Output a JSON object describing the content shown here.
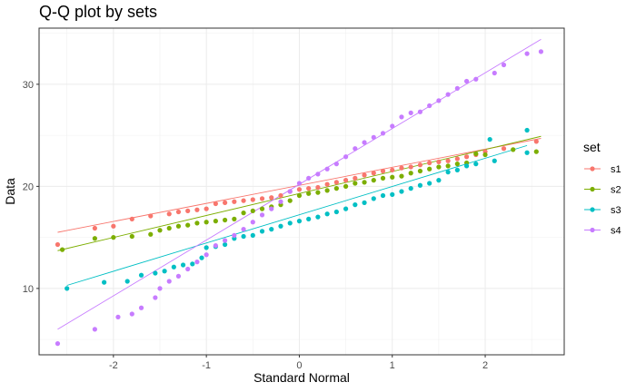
{
  "chart_data": {
    "type": "scatter",
    "title": "Q-Q plot by sets",
    "xlabel": "Standard Normal",
    "ylabel": "Data",
    "xlim": [
      -2.8,
      2.85
    ],
    "ylim": [
      3.5,
      35.5
    ],
    "xticks": [
      -2,
      -1,
      0,
      1,
      2
    ],
    "yticks": [
      10,
      20,
      30
    ],
    "grid": true,
    "legend": {
      "title": "set",
      "position": "right"
    },
    "series": [
      {
        "name": "s1",
        "color": "#F8766D",
        "line": {
          "x": [
            -2.6,
            2.6
          ],
          "y": [
            15.5,
            24.7
          ]
        },
        "points": [
          [
            -2.6,
            14.3
          ],
          [
            -2.2,
            15.9
          ],
          [
            -2.0,
            16.1
          ],
          [
            -1.8,
            16.8
          ],
          [
            -1.6,
            17.1
          ],
          [
            -1.4,
            17.3
          ],
          [
            -1.3,
            17.5
          ],
          [
            -1.2,
            17.6
          ],
          [
            -1.1,
            17.7
          ],
          [
            -1.0,
            17.8
          ],
          [
            -0.9,
            18.3
          ],
          [
            -0.8,
            18.4
          ],
          [
            -0.7,
            18.5
          ],
          [
            -0.6,
            18.6
          ],
          [
            -0.5,
            18.7
          ],
          [
            -0.4,
            18.8
          ],
          [
            -0.3,
            18.9
          ],
          [
            -0.2,
            19.1
          ],
          [
            -0.1,
            19.5
          ],
          [
            0.0,
            19.7
          ],
          [
            0.1,
            19.8
          ],
          [
            0.2,
            19.9
          ],
          [
            0.3,
            20.2
          ],
          [
            0.4,
            20.4
          ],
          [
            0.5,
            20.6
          ],
          [
            0.6,
            20.8
          ],
          [
            0.7,
            21.1
          ],
          [
            0.8,
            21.3
          ],
          [
            0.9,
            21.5
          ],
          [
            1.0,
            21.6
          ],
          [
            1.1,
            21.8
          ],
          [
            1.2,
            21.9
          ],
          [
            1.3,
            22.1
          ],
          [
            1.4,
            22.3
          ],
          [
            1.5,
            22.4
          ],
          [
            1.6,
            22.5
          ],
          [
            1.7,
            22.7
          ],
          [
            1.8,
            22.9
          ],
          [
            1.9,
            23.1
          ],
          [
            2.0,
            23.4
          ],
          [
            2.2,
            23.7
          ],
          [
            2.55,
            24.4
          ]
        ]
      },
      {
        "name": "s2",
        "color": "#7CAE00",
        "line": {
          "x": [
            -2.6,
            2.6
          ],
          "y": [
            13.7,
            24.9
          ]
        },
        "points": [
          [
            -2.55,
            13.8
          ],
          [
            -2.2,
            14.9
          ],
          [
            -2.0,
            15.0
          ],
          [
            -1.8,
            15.1
          ],
          [
            -1.6,
            15.3
          ],
          [
            -1.5,
            15.7
          ],
          [
            -1.4,
            15.9
          ],
          [
            -1.3,
            16.1
          ],
          [
            -1.2,
            16.2
          ],
          [
            -1.1,
            16.4
          ],
          [
            -1.0,
            16.5
          ],
          [
            -0.9,
            16.6
          ],
          [
            -0.8,
            16.7
          ],
          [
            -0.7,
            16.8
          ],
          [
            -0.6,
            17.4
          ],
          [
            -0.5,
            17.6
          ],
          [
            -0.4,
            17.8
          ],
          [
            -0.3,
            18.0
          ],
          [
            -0.2,
            18.2
          ],
          [
            -0.1,
            18.6
          ],
          [
            0.0,
            19.1
          ],
          [
            0.1,
            19.3
          ],
          [
            0.2,
            19.4
          ],
          [
            0.3,
            19.6
          ],
          [
            0.4,
            19.8
          ],
          [
            0.5,
            20.0
          ],
          [
            0.6,
            20.3
          ],
          [
            0.7,
            20.4
          ],
          [
            0.8,
            20.6
          ],
          [
            0.9,
            20.8
          ],
          [
            1.0,
            20.9
          ],
          [
            1.1,
            21.0
          ],
          [
            1.2,
            21.3
          ],
          [
            1.3,
            21.5
          ],
          [
            1.4,
            21.7
          ],
          [
            1.5,
            21.9
          ],
          [
            1.6,
            22.0
          ],
          [
            1.7,
            22.2
          ],
          [
            1.8,
            22.3
          ],
          [
            1.9,
            23.2
          ],
          [
            2.0,
            23.1
          ],
          [
            2.3,
            23.6
          ],
          [
            2.55,
            23.4
          ]
        ]
      },
      {
        "name": "s3",
        "color": "#00BFC4",
        "line": {
          "x": [
            -2.5,
            2.45
          ],
          "y": [
            10.3,
            24.0
          ]
        },
        "points": [
          [
            -2.5,
            10.0
          ],
          [
            -2.1,
            10.6
          ],
          [
            -1.85,
            10.7
          ],
          [
            -1.7,
            11.3
          ],
          [
            -1.55,
            11.5
          ],
          [
            -1.45,
            11.7
          ],
          [
            -1.35,
            12.1
          ],
          [
            -1.25,
            12.3
          ],
          [
            -1.15,
            12.4
          ],
          [
            -1.05,
            13.0
          ],
          [
            -1.0,
            14.0
          ],
          [
            -0.9,
            14.1
          ],
          [
            -0.8,
            14.3
          ],
          [
            -0.7,
            14.9
          ],
          [
            -0.6,
            15.1
          ],
          [
            -0.5,
            15.2
          ],
          [
            -0.4,
            15.6
          ],
          [
            -0.3,
            15.8
          ],
          [
            -0.2,
            16.1
          ],
          [
            -0.1,
            16.4
          ],
          [
            0.0,
            16.6
          ],
          [
            0.1,
            16.8
          ],
          [
            0.2,
            17.0
          ],
          [
            0.3,
            17.3
          ],
          [
            0.4,
            17.5
          ],
          [
            0.5,
            17.8
          ],
          [
            0.6,
            18.2
          ],
          [
            0.7,
            18.4
          ],
          [
            0.8,
            18.8
          ],
          [
            0.9,
            19.1
          ],
          [
            1.0,
            19.2
          ],
          [
            1.1,
            19.5
          ],
          [
            1.2,
            19.8
          ],
          [
            1.3,
            20.1
          ],
          [
            1.4,
            20.3
          ],
          [
            1.5,
            20.6
          ],
          [
            1.6,
            21.4
          ],
          [
            1.7,
            21.6
          ],
          [
            1.8,
            22.0
          ],
          [
            1.9,
            22.2
          ],
          [
            2.1,
            22.5
          ],
          [
            2.45,
            23.3
          ],
          [
            2.05,
            24.6
          ],
          [
            2.45,
            25.5
          ]
        ]
      },
      {
        "name": "s4",
        "color": "#C77CFF",
        "line": {
          "x": [
            -2.6,
            2.6
          ],
          "y": [
            6.0,
            34.4
          ]
        },
        "points": [
          [
            -2.6,
            4.6
          ],
          [
            -2.2,
            6.0
          ],
          [
            -1.95,
            7.2
          ],
          [
            -1.8,
            7.5
          ],
          [
            -1.7,
            8.1
          ],
          [
            -1.55,
            9.1
          ],
          [
            -1.5,
            10.0
          ],
          [
            -1.4,
            10.7
          ],
          [
            -1.3,
            11.2
          ],
          [
            -1.2,
            11.9
          ],
          [
            -1.1,
            12.6
          ],
          [
            -1.0,
            13.3
          ],
          [
            -0.9,
            14.2
          ],
          [
            -0.8,
            14.7
          ],
          [
            -0.7,
            15.2
          ],
          [
            -0.6,
            15.8
          ],
          [
            -0.5,
            16.5
          ],
          [
            -0.4,
            17.2
          ],
          [
            -0.3,
            17.8
          ],
          [
            -0.2,
            18.5
          ],
          [
            -0.1,
            19.5
          ],
          [
            0.0,
            20.3
          ],
          [
            0.1,
            20.8
          ],
          [
            0.2,
            21.2
          ],
          [
            0.3,
            21.7
          ],
          [
            0.4,
            22.2
          ],
          [
            0.5,
            22.9
          ],
          [
            0.6,
            23.7
          ],
          [
            0.7,
            24.3
          ],
          [
            0.8,
            24.8
          ],
          [
            0.9,
            25.2
          ],
          [
            1.0,
            25.9
          ],
          [
            1.1,
            26.8
          ],
          [
            1.2,
            27.2
          ],
          [
            1.3,
            27.3
          ],
          [
            1.4,
            27.9
          ],
          [
            1.5,
            28.4
          ],
          [
            1.6,
            29.0
          ],
          [
            1.7,
            29.6
          ],
          [
            1.8,
            30.3
          ],
          [
            1.9,
            30.5
          ],
          [
            2.1,
            31.1
          ],
          [
            2.2,
            31.9
          ],
          [
            2.45,
            33.0
          ],
          [
            2.6,
            33.2
          ]
        ]
      }
    ]
  }
}
